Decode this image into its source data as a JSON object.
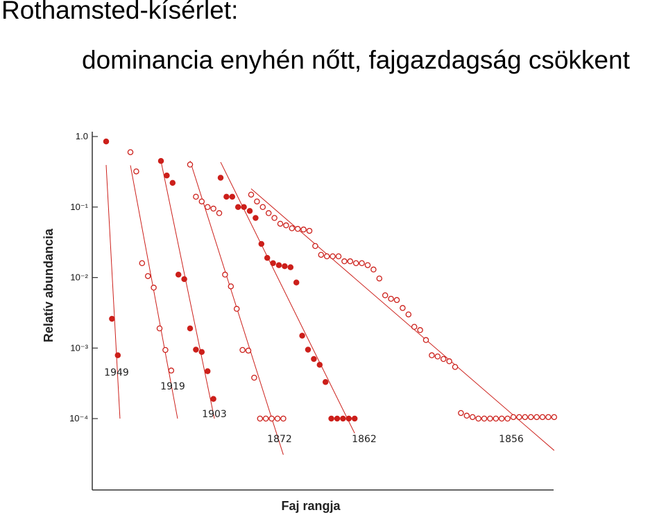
{
  "title": "Rothamsted-kísérlet:",
  "subtitle": "dominancia enyhén nőtt, fajgazdagság csökkent",
  "colors": {
    "series": "#cc1f1a",
    "axis": "#333333"
  },
  "chart_data": {
    "type": "scatter",
    "title": "",
    "xlabel": "Faj rangja",
    "ylabel": "Relatív abundancia",
    "y_scale": "log",
    "ylim": [
      0.0001,
      1.0
    ],
    "y_ticks": [
      {
        "value": 1.0,
        "label": "1.0"
      },
      {
        "value": 0.1,
        "label": "10⁻¹"
      },
      {
        "value": 0.01,
        "label": "10⁻²"
      },
      {
        "value": 0.001,
        "label": "10⁻³"
      },
      {
        "value": 0.0001,
        "label": "10⁻⁴"
      }
    ],
    "series": [
      {
        "name": "1949",
        "marker": "filled",
        "start_rank": 1,
        "values": [
          0.85,
          0.0026,
          0.00079
        ]
      },
      {
        "name": "1919",
        "marker": "open",
        "start_rank": 1,
        "values": [
          0.6,
          0.32,
          0.016,
          0.0105,
          0.0072,
          0.0019,
          0.00094,
          0.00048
        ]
      },
      {
        "name": "1903",
        "marker": "filled",
        "start_rank": 1,
        "values": [
          0.45,
          0.28,
          0.22,
          0.011,
          0.0095,
          0.0019,
          0.00095,
          0.00088,
          0.00047,
          0.00019
        ]
      },
      {
        "name": "1872",
        "marker": "open",
        "start_rank": 1,
        "values": [
          0.4,
          0.14,
          0.12,
          0.1,
          0.095,
          0.082,
          0.011,
          0.0075,
          0.0036,
          0.00094,
          0.00092,
          0.00038,
          0.0001,
          0.0001,
          0.0001,
          0.0001,
          0.0001
        ]
      },
      {
        "name": "1862",
        "marker": "filled",
        "start_rank": 1,
        "values": [
          0.26,
          0.14,
          0.14,
          0.1,
          0.1,
          0.088,
          0.07,
          0.03,
          0.019,
          0.016,
          0.015,
          0.0145,
          0.014,
          0.0085,
          0.0015,
          0.00095,
          0.0007,
          0.00058,
          0.00033,
          0.0001,
          0.0001,
          0.0001,
          0.0001,
          0.0001
        ]
      },
      {
        "name": "1856",
        "marker": "open",
        "start_rank": 1,
        "values": [
          0.15,
          0.12,
          0.1,
          0.082,
          0.07,
          0.058,
          0.055,
          0.05,
          0.049,
          0.048,
          0.046,
          0.028,
          0.021,
          0.02,
          0.02,
          0.02,
          0.017,
          0.017,
          0.016,
          0.016,
          0.015,
          0.013,
          0.0097,
          0.0056,
          0.005,
          0.0048,
          0.0037,
          0.003,
          0.002,
          0.0018,
          0.0013,
          0.00079,
          0.00076,
          0.0007,
          0.00065,
          0.00054,
          0.00012,
          0.00011,
          0.000105,
          0.0001,
          0.0001,
          0.0001,
          0.0001,
          0.0001,
          0.0001,
          0.000105,
          0.000105,
          0.000105,
          0.000105,
          0.000105,
          0.000105,
          0.000105,
          0.000105
        ]
      }
    ],
    "grid": false,
    "legend": "none"
  }
}
